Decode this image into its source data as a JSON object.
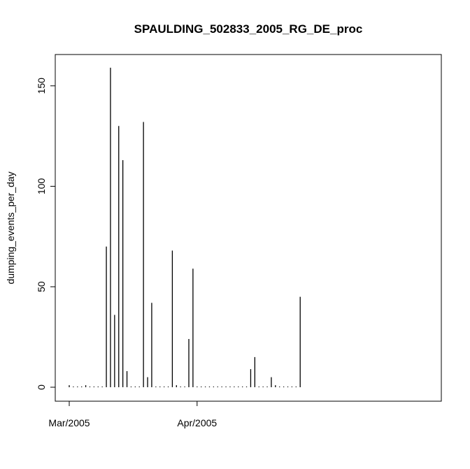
{
  "chart_data": {
    "type": "bar",
    "title": "SPAULDING_502833_2005_RG_DE_proc",
    "xlabel": "",
    "ylabel": "dumping_events_per_day",
    "x_start": "2005-03-01",
    "x_end": "2005-05-27",
    "x_ticks": [
      {
        "date": "2005-03-01",
        "label": "Mar/2005"
      },
      {
        "date": "2005-04-01",
        "label": "Apr/2005"
      }
    ],
    "y_ticks": [
      0,
      50,
      100,
      150
    ],
    "ylim": [
      0,
      160
    ],
    "grid": false,
    "legend": "none",
    "series": [
      {
        "x": [
          "2005-03-01",
          "2005-03-02",
          "2005-03-03",
          "2005-03-04",
          "2005-03-05",
          "2005-03-06",
          "2005-03-07",
          "2005-03-08",
          "2005-03-09",
          "2005-03-10",
          "2005-03-11",
          "2005-03-12",
          "2005-03-13",
          "2005-03-14",
          "2005-03-15",
          "2005-03-16",
          "2005-03-17",
          "2005-03-18",
          "2005-03-19",
          "2005-03-20",
          "2005-03-21",
          "2005-03-22",
          "2005-03-23",
          "2005-03-24",
          "2005-03-25",
          "2005-03-26",
          "2005-03-27",
          "2005-03-28",
          "2005-03-29",
          "2005-03-30",
          "2005-03-31",
          "2005-04-01",
          "2005-04-02",
          "2005-04-03",
          "2005-04-04",
          "2005-04-05",
          "2005-04-06",
          "2005-04-07",
          "2005-04-08",
          "2005-04-09",
          "2005-04-10",
          "2005-04-11",
          "2005-04-12",
          "2005-04-13",
          "2005-04-14",
          "2005-04-15",
          "2005-04-16",
          "2005-04-17",
          "2005-04-18",
          "2005-04-19",
          "2005-04-20",
          "2005-04-21",
          "2005-04-22",
          "2005-04-23",
          "2005-04-24",
          "2005-04-25",
          "2005-04-26"
        ],
        "values": [
          1,
          0,
          0,
          0,
          1,
          0,
          0,
          0,
          0,
          70,
          159,
          36,
          130,
          113,
          8,
          0,
          0,
          0,
          132,
          5,
          42,
          0,
          0,
          0,
          0,
          68,
          1,
          0,
          0,
          24,
          59,
          0,
          0,
          0,
          0,
          0,
          0,
          0,
          0,
          0,
          0,
          0,
          0,
          0,
          9,
          15,
          0,
          0,
          0,
          5,
          1,
          0,
          0,
          0,
          0,
          0,
          45
        ]
      }
    ]
  }
}
